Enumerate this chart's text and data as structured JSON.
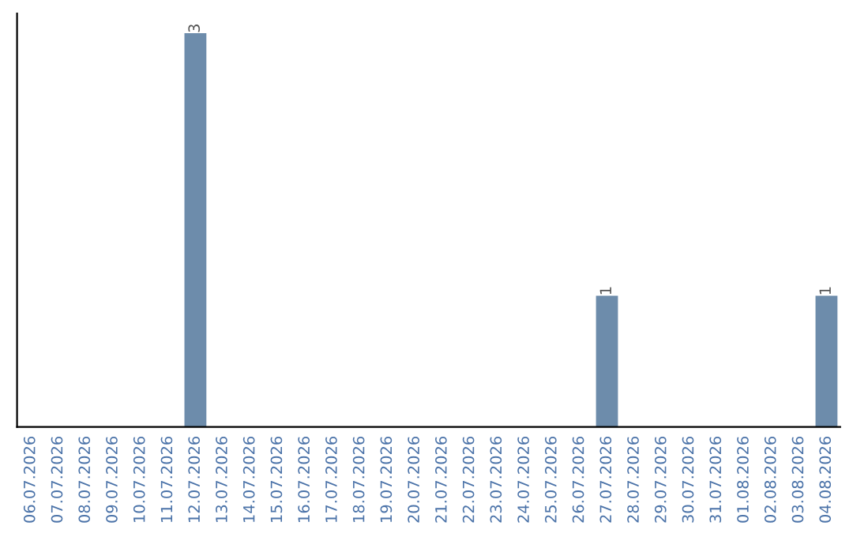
{
  "chart_data": {
    "type": "bar",
    "categories": [
      "06.07.2026",
      "07.07.2026",
      "08.07.2026",
      "09.07.2026",
      "10.07.2026",
      "11.07.2026",
      "12.07.2026",
      "13.07.2026",
      "14.07.2026",
      "15.07.2026",
      "16.07.2026",
      "17.07.2026",
      "18.07.2026",
      "19.07.2026",
      "20.07.2026",
      "21.07.2026",
      "22.07.2026",
      "23.07.2026",
      "24.07.2026",
      "25.07.2026",
      "26.07.2026",
      "27.07.2026",
      "28.07.2026",
      "29.07.2026",
      "30.07.2026",
      "31.07.2026",
      "01.08.2026",
      "02.08.2026",
      "03.08.2026",
      "04.08.2026"
    ],
    "values": [
      0,
      0,
      0,
      0,
      0,
      0,
      3,
      0,
      0,
      0,
      0,
      0,
      0,
      0,
      0,
      0,
      0,
      0,
      0,
      0,
      0,
      1,
      0,
      0,
      0,
      0,
      0,
      0,
      0,
      1
    ],
    "value_labels": [
      null,
      null,
      null,
      null,
      null,
      null,
      "3",
      null,
      null,
      null,
      null,
      null,
      null,
      null,
      null,
      null,
      null,
      null,
      null,
      null,
      null,
      "1",
      null,
      null,
      null,
      null,
      null,
      null,
      null,
      "1"
    ],
    "color": "#6d8cab",
    "grid": false,
    "legend": false
  }
}
